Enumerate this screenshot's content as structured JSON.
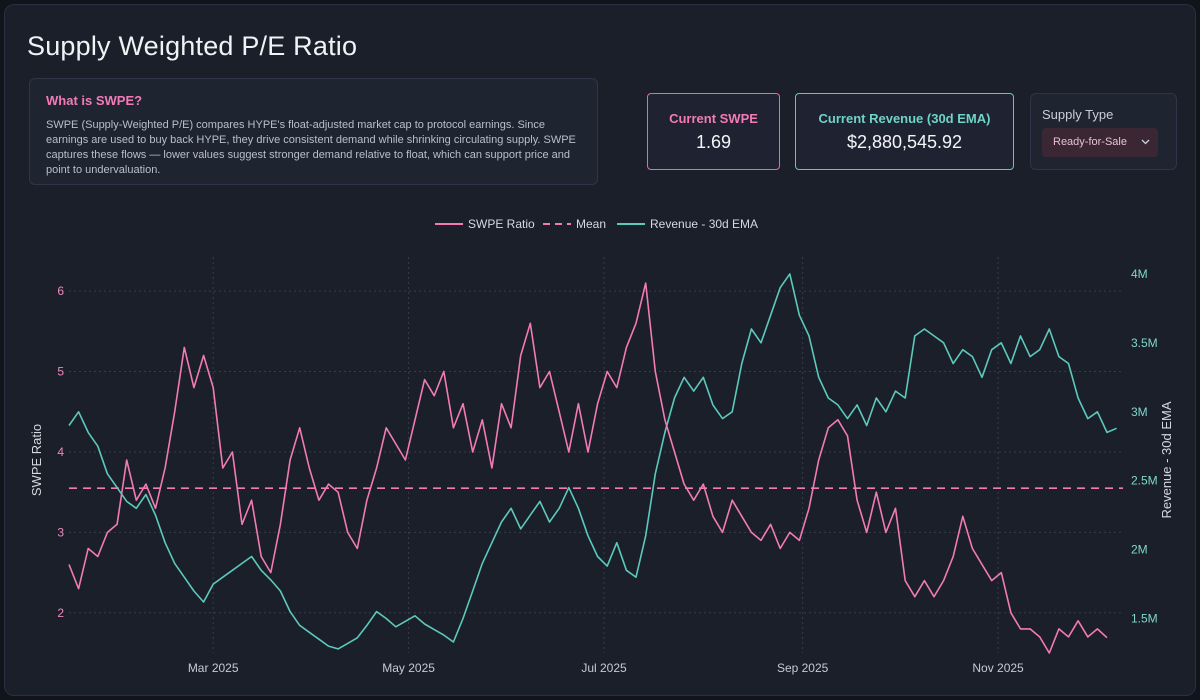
{
  "header": {
    "title": "Supply Weighted P/E Ratio"
  },
  "info": {
    "title": "What is SWPE?",
    "text": "SWPE (Supply-Weighted P/E) compares HYPE's float-adjusted market cap to protocol earnings. Since earnings are used to buy back HYPE, they drive consistent demand while shrinking circulating supply. SWPE captures these flows — lower values suggest stronger demand relative to float, which can support price and point to undervaluation."
  },
  "stats": {
    "swpe": {
      "label": "Current SWPE",
      "value": "1.69"
    },
    "revenue": {
      "label": "Current Revenue (30d EMA)",
      "value": "$2,880,545.92"
    }
  },
  "supply": {
    "label": "Supply Type",
    "selected": "Ready-for-Sale",
    "chevron_icon": "chevron-down-icon"
  },
  "colors": {
    "swpe": "#f27bb6",
    "revenue": "#5cc9bd",
    "mean": "#f27bb6",
    "grid": "#363c4d",
    "tick_left": "#e98ac0",
    "tick_right": "#7fd6cb"
  },
  "chart_data": {
    "type": "line",
    "title": "",
    "legend": {
      "placement": "top-center",
      "entries": [
        "SWPE Ratio",
        "Mean",
        "Revenue - 30d EMA"
      ]
    },
    "x_type": "date",
    "xlim": [
      "2025-01-15",
      "2025-12-10"
    ],
    "x_ticks": [
      {
        "date": "2025-03-01",
        "label": "Mar 2025"
      },
      {
        "date": "2025-05-01",
        "label": "May 2025"
      },
      {
        "date": "2025-07-01",
        "label": "Jul 2025"
      },
      {
        "date": "2025-09-01",
        "label": "Sep 2025"
      },
      {
        "date": "2025-11-01",
        "label": "Nov 2025"
      }
    ],
    "y_left": {
      "label": "SWPE Ratio",
      "range": [
        1.5,
        6.3
      ],
      "ticks": [
        2,
        3,
        4,
        5,
        6
      ]
    },
    "y_right": {
      "label": "Revenue - 30d EMA",
      "range": [
        1250000,
        4050000
      ],
      "ticks": [
        1500000,
        2000000,
        2500000,
        3000000,
        3500000,
        4000000
      ],
      "tick_labels": [
        "1.5M",
        "2M",
        "2.5M",
        "3M",
        "3.5M",
        "4M"
      ]
    },
    "grid": true,
    "mean": {
      "name": "Mean",
      "axis": "left",
      "value": 3.55
    },
    "series": [
      {
        "name": "SWPE Ratio",
        "axis": "left",
        "points": [
          [
            "2025-01-15",
            2.6
          ],
          [
            "2025-01-18",
            2.3
          ],
          [
            "2025-01-21",
            2.8
          ],
          [
            "2025-01-24",
            2.7
          ],
          [
            "2025-01-27",
            3.0
          ],
          [
            "2025-01-30",
            3.1
          ],
          [
            "2025-02-02",
            3.9
          ],
          [
            "2025-02-05",
            3.4
          ],
          [
            "2025-02-08",
            3.6
          ],
          [
            "2025-02-11",
            3.3
          ],
          [
            "2025-02-14",
            3.8
          ],
          [
            "2025-02-17",
            4.5
          ],
          [
            "2025-02-20",
            5.3
          ],
          [
            "2025-02-23",
            4.8
          ],
          [
            "2025-02-26",
            5.2
          ],
          [
            "2025-03-01",
            4.8
          ],
          [
            "2025-03-04",
            3.8
          ],
          [
            "2025-03-07",
            4.0
          ],
          [
            "2025-03-10",
            3.1
          ],
          [
            "2025-03-13",
            3.4
          ],
          [
            "2025-03-16",
            2.7
          ],
          [
            "2025-03-19",
            2.5
          ],
          [
            "2025-03-22",
            3.1
          ],
          [
            "2025-03-25",
            3.9
          ],
          [
            "2025-03-28",
            4.3
          ],
          [
            "2025-03-31",
            3.8
          ],
          [
            "2025-04-03",
            3.4
          ],
          [
            "2025-04-06",
            3.6
          ],
          [
            "2025-04-09",
            3.5
          ],
          [
            "2025-04-12",
            3.0
          ],
          [
            "2025-04-15",
            2.8
          ],
          [
            "2025-04-18",
            3.4
          ],
          [
            "2025-04-21",
            3.8
          ],
          [
            "2025-04-24",
            4.3
          ],
          [
            "2025-04-27",
            4.1
          ],
          [
            "2025-04-30",
            3.9
          ],
          [
            "2025-05-03",
            4.4
          ],
          [
            "2025-05-06",
            4.9
          ],
          [
            "2025-05-09",
            4.7
          ],
          [
            "2025-05-12",
            5.0
          ],
          [
            "2025-05-15",
            4.3
          ],
          [
            "2025-05-18",
            4.6
          ],
          [
            "2025-05-21",
            4.0
          ],
          [
            "2025-05-24",
            4.4
          ],
          [
            "2025-05-27",
            3.8
          ],
          [
            "2025-05-30",
            4.6
          ],
          [
            "2025-06-02",
            4.3
          ],
          [
            "2025-06-05",
            5.2
          ],
          [
            "2025-06-08",
            5.6
          ],
          [
            "2025-06-11",
            4.8
          ],
          [
            "2025-06-14",
            5.0
          ],
          [
            "2025-06-17",
            4.5
          ],
          [
            "2025-06-20",
            4.0
          ],
          [
            "2025-06-23",
            4.6
          ],
          [
            "2025-06-26",
            4.0
          ],
          [
            "2025-06-29",
            4.6
          ],
          [
            "2025-07-02",
            5.0
          ],
          [
            "2025-07-05",
            4.8
          ],
          [
            "2025-07-08",
            5.3
          ],
          [
            "2025-07-11",
            5.6
          ],
          [
            "2025-07-14",
            6.1
          ],
          [
            "2025-07-17",
            5.0
          ],
          [
            "2025-07-20",
            4.4
          ],
          [
            "2025-07-23",
            4.0
          ],
          [
            "2025-07-26",
            3.6
          ],
          [
            "2025-07-29",
            3.4
          ],
          [
            "2025-08-01",
            3.6
          ],
          [
            "2025-08-04",
            3.2
          ],
          [
            "2025-08-07",
            3.0
          ],
          [
            "2025-08-10",
            3.4
          ],
          [
            "2025-08-13",
            3.2
          ],
          [
            "2025-08-16",
            3.0
          ],
          [
            "2025-08-19",
            2.9
          ],
          [
            "2025-08-22",
            3.1
          ],
          [
            "2025-08-25",
            2.8
          ],
          [
            "2025-08-28",
            3.0
          ],
          [
            "2025-08-31",
            2.9
          ],
          [
            "2025-09-03",
            3.3
          ],
          [
            "2025-09-06",
            3.9
          ],
          [
            "2025-09-09",
            4.3
          ],
          [
            "2025-09-12",
            4.4
          ],
          [
            "2025-09-15",
            4.2
          ],
          [
            "2025-09-18",
            3.4
          ],
          [
            "2025-09-21",
            3.0
          ],
          [
            "2025-09-24",
            3.5
          ],
          [
            "2025-09-27",
            3.0
          ],
          [
            "2025-09-30",
            3.3
          ],
          [
            "2025-10-03",
            2.4
          ],
          [
            "2025-10-06",
            2.2
          ],
          [
            "2025-10-09",
            2.4
          ],
          [
            "2025-10-12",
            2.2
          ],
          [
            "2025-10-15",
            2.4
          ],
          [
            "2025-10-18",
            2.7
          ],
          [
            "2025-10-21",
            3.2
          ],
          [
            "2025-10-24",
            2.8
          ],
          [
            "2025-10-27",
            2.6
          ],
          [
            "2025-10-30",
            2.4
          ],
          [
            "2025-11-02",
            2.5
          ],
          [
            "2025-11-05",
            2.0
          ],
          [
            "2025-11-08",
            1.8
          ],
          [
            "2025-11-11",
            1.8
          ],
          [
            "2025-11-14",
            1.7
          ],
          [
            "2025-11-17",
            1.5
          ],
          [
            "2025-11-20",
            1.8
          ],
          [
            "2025-11-23",
            1.7
          ],
          [
            "2025-11-26",
            1.9
          ],
          [
            "2025-11-29",
            1.7
          ],
          [
            "2025-12-02",
            1.8
          ],
          [
            "2025-12-05",
            1.69
          ]
        ]
      },
      {
        "name": "Revenue - 30d EMA",
        "axis": "right",
        "points": [
          [
            "2025-01-15",
            2.9
          ],
          [
            "2025-01-18",
            3.0
          ],
          [
            "2025-01-21",
            2.85
          ],
          [
            "2025-01-24",
            2.75
          ],
          [
            "2025-01-27",
            2.55
          ],
          [
            "2025-01-30",
            2.45
          ],
          [
            "2025-02-02",
            2.35
          ],
          [
            "2025-02-05",
            2.3
          ],
          [
            "2025-02-08",
            2.4
          ],
          [
            "2025-02-11",
            2.25
          ],
          [
            "2025-02-14",
            2.05
          ],
          [
            "2025-02-17",
            1.9
          ],
          [
            "2025-02-20",
            1.8
          ],
          [
            "2025-02-23",
            1.7
          ],
          [
            "2025-02-26",
            1.62
          ],
          [
            "2025-03-01",
            1.75
          ],
          [
            "2025-03-04",
            1.8
          ],
          [
            "2025-03-07",
            1.85
          ],
          [
            "2025-03-10",
            1.9
          ],
          [
            "2025-03-13",
            1.95
          ],
          [
            "2025-03-16",
            1.85
          ],
          [
            "2025-03-19",
            1.78
          ],
          [
            "2025-03-22",
            1.7
          ],
          [
            "2025-03-25",
            1.55
          ],
          [
            "2025-03-28",
            1.45
          ],
          [
            "2025-03-31",
            1.4
          ],
          [
            "2025-04-03",
            1.35
          ],
          [
            "2025-04-06",
            1.3
          ],
          [
            "2025-04-09",
            1.28
          ],
          [
            "2025-04-12",
            1.32
          ],
          [
            "2025-04-15",
            1.36
          ],
          [
            "2025-04-18",
            1.45
          ],
          [
            "2025-04-21",
            1.55
          ],
          [
            "2025-04-24",
            1.5
          ],
          [
            "2025-04-27",
            1.44
          ],
          [
            "2025-04-30",
            1.48
          ],
          [
            "2025-05-03",
            1.52
          ],
          [
            "2025-05-06",
            1.46
          ],
          [
            "2025-05-09",
            1.42
          ],
          [
            "2025-05-12",
            1.38
          ],
          [
            "2025-05-15",
            1.33
          ],
          [
            "2025-05-18",
            1.5
          ],
          [
            "2025-05-21",
            1.7
          ],
          [
            "2025-05-24",
            1.9
          ],
          [
            "2025-05-27",
            2.05
          ],
          [
            "2025-05-30",
            2.2
          ],
          [
            "2025-06-02",
            2.3
          ],
          [
            "2025-06-05",
            2.15
          ],
          [
            "2025-06-08",
            2.25
          ],
          [
            "2025-06-11",
            2.35
          ],
          [
            "2025-06-14",
            2.2
          ],
          [
            "2025-06-17",
            2.3
          ],
          [
            "2025-06-20",
            2.45
          ],
          [
            "2025-06-23",
            2.3
          ],
          [
            "2025-06-26",
            2.1
          ],
          [
            "2025-06-29",
            1.95
          ],
          [
            "2025-07-02",
            1.88
          ],
          [
            "2025-07-05",
            2.05
          ],
          [
            "2025-07-08",
            1.85
          ],
          [
            "2025-07-11",
            1.8
          ],
          [
            "2025-07-14",
            2.1
          ],
          [
            "2025-07-17",
            2.55
          ],
          [
            "2025-07-20",
            2.85
          ],
          [
            "2025-07-23",
            3.1
          ],
          [
            "2025-07-26",
            3.25
          ],
          [
            "2025-07-29",
            3.15
          ],
          [
            "2025-08-01",
            3.25
          ],
          [
            "2025-08-04",
            3.05
          ],
          [
            "2025-08-07",
            2.95
          ],
          [
            "2025-08-10",
            3.0
          ],
          [
            "2025-08-13",
            3.35
          ],
          [
            "2025-08-16",
            3.6
          ],
          [
            "2025-08-19",
            3.5
          ],
          [
            "2025-08-22",
            3.7
          ],
          [
            "2025-08-25",
            3.9
          ],
          [
            "2025-08-28",
            4.0
          ],
          [
            "2025-08-31",
            3.7
          ],
          [
            "2025-09-03",
            3.55
          ],
          [
            "2025-09-06",
            3.25
          ],
          [
            "2025-09-09",
            3.1
          ],
          [
            "2025-09-12",
            3.05
          ],
          [
            "2025-09-15",
            2.95
          ],
          [
            "2025-09-18",
            3.05
          ],
          [
            "2025-09-21",
            2.9
          ],
          [
            "2025-09-24",
            3.1
          ],
          [
            "2025-09-27",
            3.0
          ],
          [
            "2025-09-30",
            3.15
          ],
          [
            "2025-10-03",
            3.1
          ],
          [
            "2025-10-06",
            3.55
          ],
          [
            "2025-10-09",
            3.6
          ],
          [
            "2025-10-12",
            3.55
          ],
          [
            "2025-10-15",
            3.5
          ],
          [
            "2025-10-18",
            3.35
          ],
          [
            "2025-10-21",
            3.45
          ],
          [
            "2025-10-24",
            3.4
          ],
          [
            "2025-10-27",
            3.25
          ],
          [
            "2025-10-30",
            3.45
          ],
          [
            "2025-11-02",
            3.5
          ],
          [
            "2025-11-05",
            3.35
          ],
          [
            "2025-11-08",
            3.55
          ],
          [
            "2025-11-11",
            3.4
          ],
          [
            "2025-11-14",
            3.45
          ],
          [
            "2025-11-17",
            3.6
          ],
          [
            "2025-11-20",
            3.4
          ],
          [
            "2025-11-23",
            3.35
          ],
          [
            "2025-11-26",
            3.1
          ],
          [
            "2025-11-29",
            2.95
          ],
          [
            "2025-12-02",
            3.0
          ],
          [
            "2025-12-05",
            2.85
          ],
          [
            "2025-12-08",
            2.88
          ]
        ],
        "value_scale": 1000000
      }
    ]
  }
}
